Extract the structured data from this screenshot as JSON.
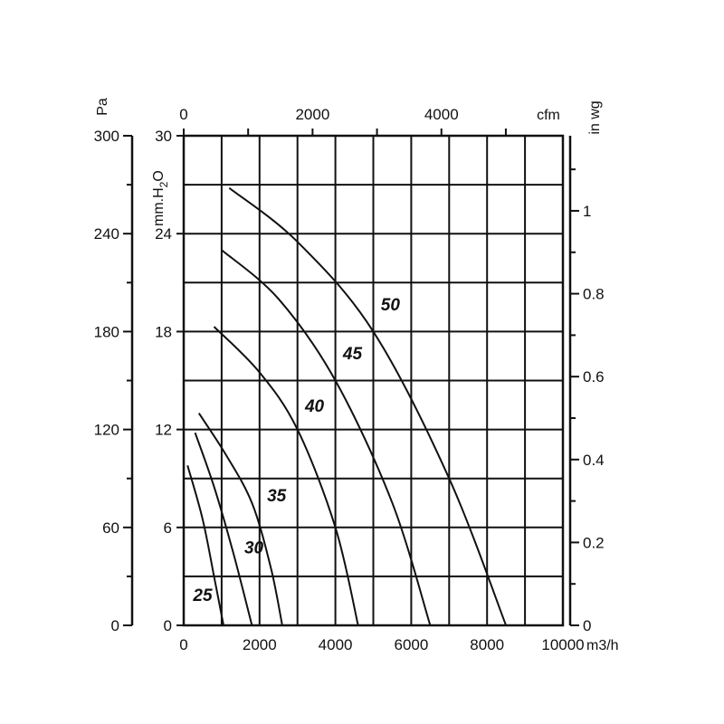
{
  "chart_data": {
    "type": "line",
    "title": "",
    "x_axis": {
      "unit": "m3/h",
      "range": [
        0,
        10000
      ],
      "ticks": [
        "0",
        "2000",
        "4000",
        "6000",
        "8000",
        "10000"
      ]
    },
    "x2_axis": {
      "unit": "cfm",
      "ticks": [
        "0",
        "2000",
        "4000"
      ]
    },
    "y_axis": {
      "unit": "mm.H2O",
      "range": [
        0,
        30
      ],
      "ticks": [
        "0",
        "6",
        "12",
        "18",
        "24",
        "30"
      ]
    },
    "y2_axis": {
      "unit": "Pa",
      "ticks": [
        "0",
        "60",
        "120",
        "180",
        "240",
        "300"
      ]
    },
    "y3_axis": {
      "unit": "in wg",
      "ticks": [
        "0",
        "0.2",
        "0.4",
        "0.6",
        "0.8",
        "1"
      ]
    },
    "grid": true,
    "series": [
      {
        "name": "25",
        "x": [
          100,
          500,
          800,
          1050
        ],
        "y": [
          9.8,
          6.5,
          3.0,
          0
        ]
      },
      {
        "name": "30",
        "x": [
          300,
          800,
          1300,
          1800
        ],
        "y": [
          11.8,
          8.5,
          4.5,
          0
        ]
      },
      {
        "name": "35",
        "x": [
          400,
          1100,
          1800,
          2300,
          2600
        ],
        "y": [
          13.0,
          10.5,
          7.5,
          3.5,
          0
        ]
      },
      {
        "name": "40",
        "x": [
          800,
          2000,
          3000,
          4000,
          4600
        ],
        "y": [
          18.3,
          15.5,
          12.0,
          6.0,
          0
        ]
      },
      {
        "name": "45",
        "x": [
          1000,
          2500,
          4000,
          5500,
          6500
        ],
        "y": [
          23.0,
          20.0,
          15.0,
          7.5,
          0
        ]
      },
      {
        "name": "50",
        "x": [
          1200,
          3000,
          5000,
          7000,
          8500
        ],
        "y": [
          26.8,
          23.5,
          18.0,
          9.0,
          0
        ]
      }
    ],
    "curve_labels": [
      {
        "text": "25",
        "x": 500,
        "y": 1.5
      },
      {
        "text": "30",
        "x": 1850,
        "y": 4.4
      },
      {
        "text": "35",
        "x": 2450,
        "y": 7.6
      },
      {
        "text": "40",
        "x": 3450,
        "y": 13.1
      },
      {
        "text": "45",
        "x": 4450,
        "y": 16.3
      },
      {
        "text": "50",
        "x": 5450,
        "y": 19.3
      }
    ]
  }
}
